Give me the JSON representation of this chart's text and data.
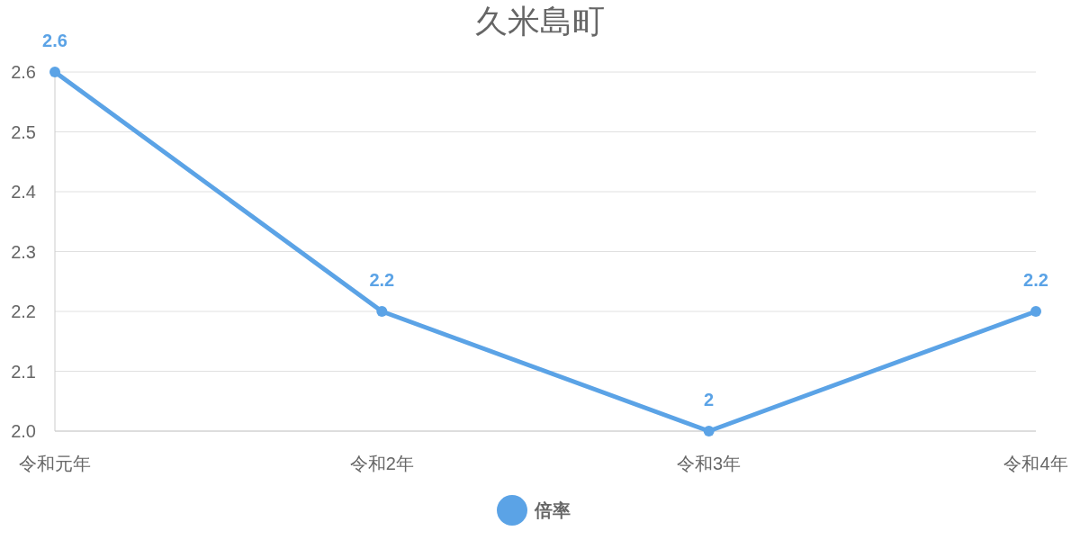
{
  "chart_data": {
    "type": "line",
    "title": "久米島町",
    "categories": [
      "令和元年",
      "令和2年",
      "令和3年",
      "令和4年"
    ],
    "series": [
      {
        "name": "倍率",
        "color": "#5ba3e6",
        "values": [
          2.6,
          2.2,
          2,
          2.2
        ]
      }
    ],
    "ylim": [
      2.0,
      2.6
    ],
    "yticks": [
      {
        "value": 2.0,
        "label": "2.0"
      },
      2.1,
      2.2,
      2.3,
      2.4,
      2.5,
      2.6
    ],
    "data_labels": true,
    "grid": "y",
    "legend": "bottom",
    "marker": "circle"
  }
}
